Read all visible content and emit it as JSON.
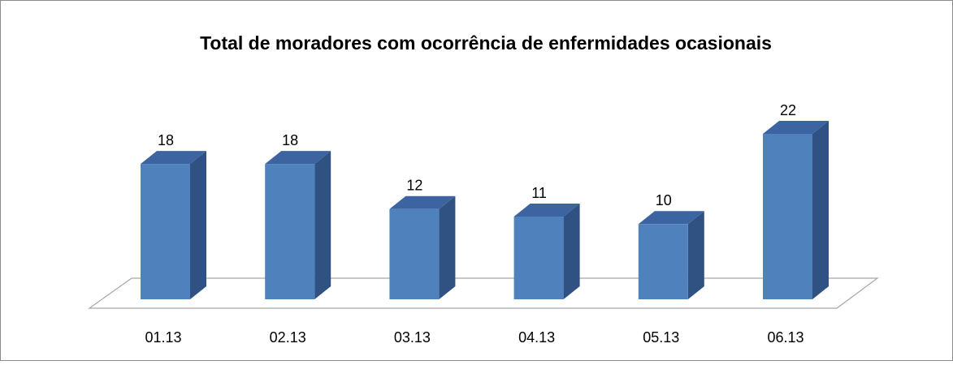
{
  "chart_data": {
    "type": "bar3d",
    "title": "Total de moradores com ocorrência de enfermidades ocasionais",
    "categories": [
      "01.13",
      "02.13",
      "03.13",
      "04.13",
      "05.13",
      "06.13"
    ],
    "values": [
      18,
      18,
      12,
      11,
      10,
      22
    ],
    "color": "#4f81bd"
  }
}
